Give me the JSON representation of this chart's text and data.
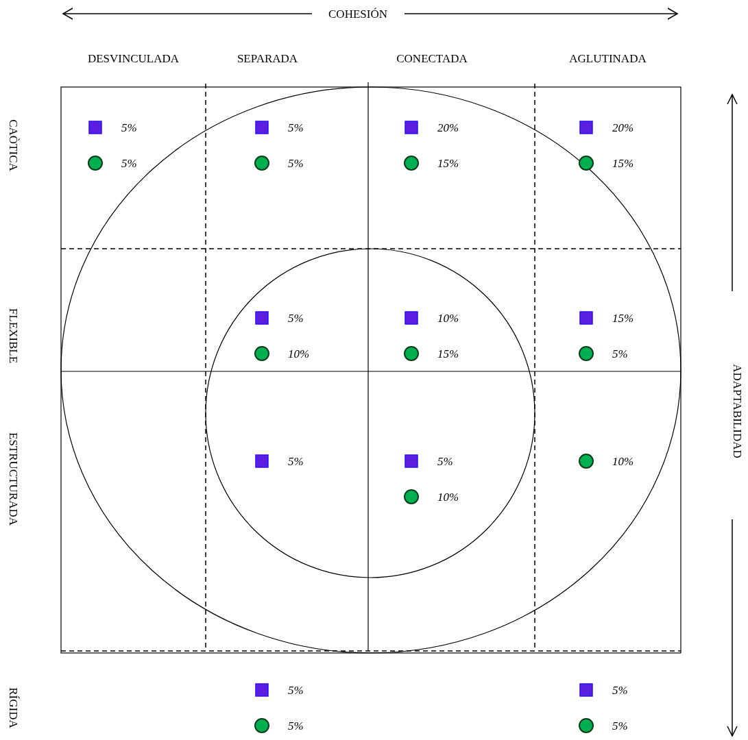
{
  "chart_data": {
    "type": "other",
    "xlabel": "COHESIÓN",
    "ylabel": "ADAPTABILIDAD",
    "categories": [
      "DESVINCULADA",
      "SEPARADA",
      "CONECTADA",
      "AGLUTINADA"
    ],
    "y_categories": [
      "CAÒTICA",
      "FLEXIBLE",
      "ESTRUCTURADA",
      "RÍGIDA"
    ],
    "series": [
      {
        "color": "#5b1ee0",
        "marker": "square",
        "values": [
          5,
          5,
          20,
          20
        ],
        "value_labels": [
          "5%",
          "5%",
          "20%",
          "20%"
        ]
      },
      {
        "color": "#00b050",
        "marker": "circle",
        "values": [
          5,
          5,
          15,
          15
        ],
        "value_labels": [
          "5%",
          "5%",
          "15%",
          "15%"
        ]
      },
      {
        "color": "#5b1ee0",
        "marker": "square",
        "values": [
          null,
          5,
          10,
          15
        ],
        "value_labels": [
          null,
          "5%",
          "10%",
          "15%"
        ]
      },
      {
        "color": "#00b050",
        "marker": "circle",
        "values": [
          null,
          10,
          15,
          5
        ],
        "value_labels": [
          null,
          "10%",
          "15%",
          "5%"
        ]
      },
      {
        "color": "#5b1ee0",
        "marker": "square",
        "values": [
          null,
          5,
          5,
          null
        ],
        "value_labels": [
          null,
          "5%",
          "5%",
          null
        ]
      },
      {
        "color": "#00b050",
        "marker": "circle",
        "values": [
          null,
          null,
          10,
          10
        ],
        "value_labels": [
          null,
          null,
          "10%",
          "10%"
        ]
      },
      {
        "color": "#5b1ee0",
        "marker": "square",
        "values": [
          null,
          5,
          null,
          5
        ],
        "value_labels": [
          null,
          "5%",
          null,
          "5%"
        ]
      },
      {
        "color": "#00b050",
        "marker": "circle",
        "values": [
          null,
          5,
          null,
          5
        ],
        "value_labels": [
          null,
          "5%",
          null,
          "5%"
        ]
      }
    ]
  }
}
